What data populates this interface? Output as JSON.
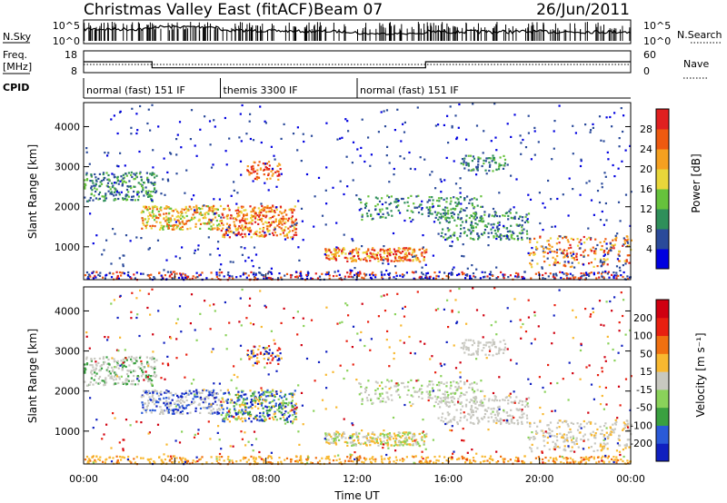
{
  "title": {
    "station": "Christmas Valley East (fitACF)",
    "beam": "Beam 07",
    "date": "26/Jun/2011"
  },
  "side_labels": {
    "nsky": "N.Sky",
    "nsearch": "N.Search",
    "freq": "Freq.",
    "freq_unit": "[MHz]",
    "nave": "Nave",
    "cpid": "CPID"
  },
  "ticks": {
    "nsky_top": "10^5",
    "nsky_bottom": "10^0",
    "nsearch_top": "10^5",
    "nsearch_bottom": "10^0",
    "freq_top": "18",
    "freq_bottom": "8",
    "nave_top": "60",
    "nave_bottom": "0"
  },
  "cpid_segments": [
    {
      "label": "normal (fast) 151 IF",
      "start_h": 0,
      "end_h": 6
    },
    {
      "label": "themis 3300 IF",
      "start_h": 6,
      "end_h": 12
    },
    {
      "label": "normal (fast) 151 IF",
      "start_h": 12,
      "end_h": 24
    }
  ],
  "chart_data": [
    {
      "type": "heatmap",
      "name": "power",
      "ylabel": "Slant Range [km]",
      "xlabel": "",
      "xlim": [
        0,
        24
      ],
      "ylim": [
        180,
        4600
      ],
      "yticks": [
        1000,
        2000,
        3000,
        4000
      ],
      "xticks": [
        "00:00",
        "04:00",
        "08:00",
        "12:00",
        "16:00",
        "20:00",
        "00:00"
      ],
      "colorbar": {
        "label": "Power [dB]",
        "ticks": [
          "4",
          "8",
          "12",
          "16",
          "20",
          "24",
          "28"
        ],
        "colors": [
          "#0000e0",
          "#2a4a9a",
          "#2f8f5a",
          "#66c23c",
          "#e8d63a",
          "#f5a020",
          "#ee5a10",
          "#e02020"
        ]
      }
    },
    {
      "type": "heatmap",
      "name": "velocity",
      "ylabel": "Slant Range [km]",
      "xlabel": "Time UT",
      "xlim": [
        0,
        24
      ],
      "ylim": [
        180,
        4600
      ],
      "yticks": [
        1000,
        2000,
        3000,
        4000
      ],
      "xticks": [
        "00:00",
        "04:00",
        "08:00",
        "12:00",
        "16:00",
        "20:00",
        "00:00"
      ],
      "colorbar": {
        "label": "Velocity [m s⁻¹]",
        "ticks": [
          "200",
          "100",
          "50",
          "15",
          "-15",
          "-50",
          "-100",
          "-200"
        ],
        "colors": [
          "#1020c0",
          "#2a5ad8",
          "#3aa040",
          "#8ad25a",
          "#c8c8c0",
          "#f8b830",
          "#f07010",
          "#e82010",
          "#d00010"
        ]
      }
    },
    {
      "type": "line",
      "name": "frequency",
      "x": [
        0,
        3,
        3,
        15,
        15,
        24
      ],
      "y": [
        13.0,
        13.0,
        10.2,
        10.2,
        13.0,
        13.0
      ],
      "ylim": [
        8,
        18
      ]
    }
  ]
}
